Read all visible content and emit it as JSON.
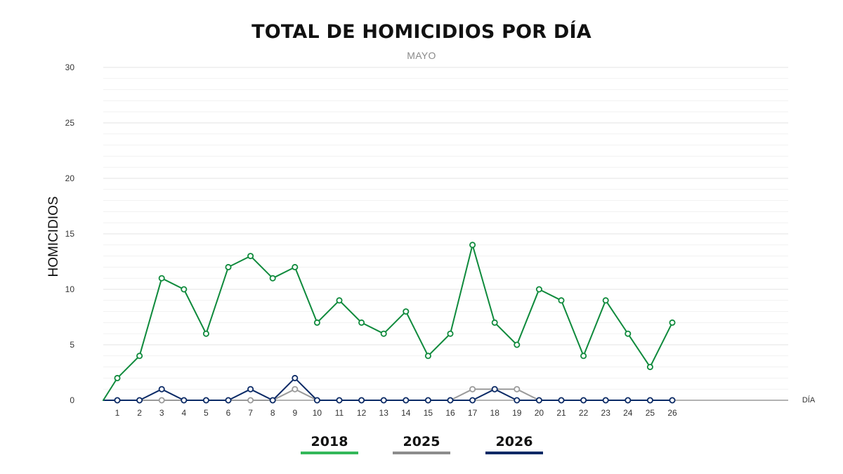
{
  "colors": {
    "s2018": "#0f8a3c",
    "s2025": "#9a9a9a",
    "s2026": "#0b2a66",
    "legend2018": "#34b85a",
    "legend2025": "#8c8c8c",
    "legend2026": "#0b2a66"
  },
  "chart_data": {
    "type": "line",
    "title": "TOTAL DE HOMICIDIOS POR DÍA",
    "subtitle": "MAYO",
    "xlabel": "DÍA",
    "ylabel": "HOMICIDIOS",
    "ylim": [
      0,
      30
    ],
    "yticks": [
      "0",
      "5",
      "10",
      "15",
      "20",
      "25",
      "30"
    ],
    "grid": true,
    "legend_position": "bottom",
    "x": [
      1,
      2,
      3,
      4,
      5,
      6,
      7,
      8,
      9,
      10,
      11,
      12,
      13,
      14,
      15,
      16,
      17,
      18,
      19,
      20,
      21,
      22,
      23,
      24,
      25,
      26
    ],
    "x_tick_labels": [
      "1",
      "2",
      "3",
      "4",
      "5",
      "6",
      "7",
      "8",
      "9",
      "10",
      "11",
      "12",
      "13",
      "14",
      "15",
      "16",
      "17",
      "18",
      "19",
      "20",
      "21",
      "22",
      "23",
      "24",
      "25",
      "26"
    ],
    "series": [
      {
        "name": "2018",
        "values": [
          2,
          4,
          11,
          10,
          6,
          12,
          13,
          11,
          12,
          7,
          9,
          7,
          6,
          8,
          4,
          6,
          14,
          7,
          5,
          10,
          9,
          4,
          9,
          6,
          3,
          7
        ]
      },
      {
        "name": "2025",
        "values": [
          0,
          0,
          0,
          0,
          0,
          0,
          0,
          0,
          1,
          0,
          0,
          0,
          0,
          0,
          0,
          0,
          1,
          1,
          1,
          0,
          0,
          0,
          0,
          0,
          0,
          0
        ]
      },
      {
        "name": "2026",
        "values": [
          0,
          0,
          1,
          0,
          0,
          0,
          1,
          0,
          2,
          0,
          0,
          0,
          0,
          0,
          0,
          0,
          0,
          1,
          0,
          0,
          0,
          0,
          0,
          0,
          0,
          0
        ]
      }
    ]
  }
}
